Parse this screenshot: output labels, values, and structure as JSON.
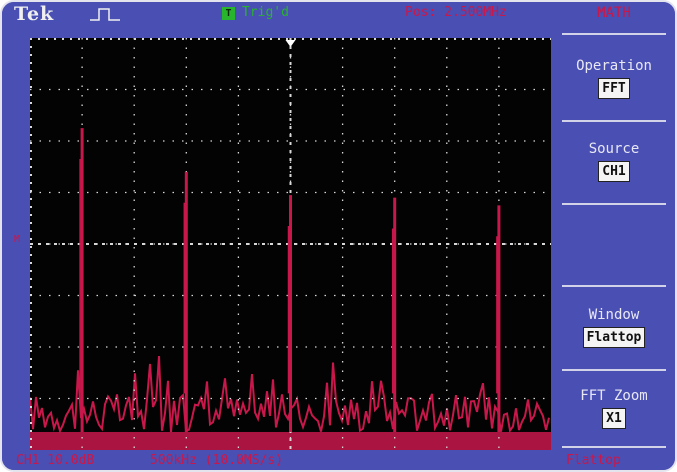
{
  "header": {
    "logo": "Tek",
    "trigger_badge": "T",
    "trigger_status": "Trig'd",
    "position": "Pos: 2.500MHz",
    "menu_title": "MATH"
  },
  "menu": {
    "operation": {
      "label": "Operation",
      "value": "FFT"
    },
    "source": {
      "label": "Source",
      "value": "CH1"
    },
    "window": {
      "label": "Window",
      "value": "Flattop"
    },
    "fft_zoom": {
      "label": "FFT Zoom",
      "value": "X1"
    }
  },
  "footer": {
    "scale": "CH1 10.0dB",
    "freq": "500kHz (10.0MS/s)",
    "window": "Flattop"
  },
  "colors": {
    "bezel": "#4a4fb4",
    "screen": "#030303",
    "trace": "#c8184b",
    "grid": "#d8d8d8",
    "trigger": "#28b42c"
  },
  "chart_data": {
    "type": "line",
    "title": "",
    "xlabel": "",
    "ylabel": "",
    "grid": true,
    "grid_divisions": {
      "x": 10,
      "y": 8
    },
    "peaks": [
      {
        "x_div": 1.0,
        "y_div": 6.25
      },
      {
        "x_div": 3.0,
        "y_div": 5.4
      },
      {
        "x_div": 5.0,
        "y_div": 4.95
      },
      {
        "x_div": 7.0,
        "y_div": 4.9
      },
      {
        "x_div": 9.0,
        "y_div": 4.75
      }
    ],
    "noise_floor_div": [
      0.35,
      1.1
    ]
  }
}
